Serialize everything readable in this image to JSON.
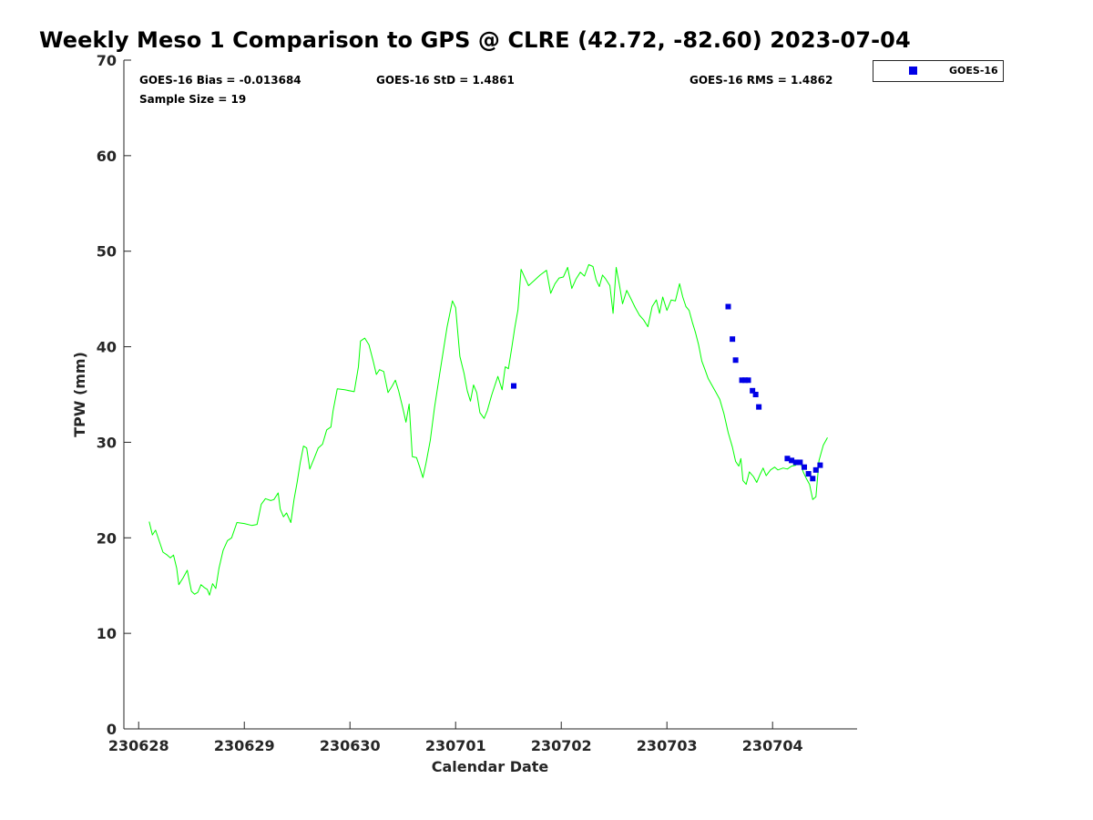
{
  "chart_data": {
    "type": "scatter",
    "title": "Weekly Meso 1 Comparison to GPS @ CLRE (42.72, -82.60) 2023-07-04",
    "xlabel": "Calendar Date",
    "ylabel": "TPW (mm)",
    "ylim": [
      0,
      70
    ],
    "yticks": [
      0,
      10,
      20,
      30,
      40,
      50,
      60,
      70
    ],
    "xticks": [
      "230628",
      "230629",
      "230630",
      "230701",
      "230702",
      "230703",
      "230704"
    ],
    "xlim_days": [
      -0.14,
      6.8
    ],
    "grid": false,
    "legend_position": "top-right-outside",
    "stats": {
      "bias": "GOES-16 Bias = -0.013684",
      "std": "GOES-16 StD = 1.4861",
      "rms": "GOES-16 RMS = 1.4862",
      "sample": "Sample Size = 19"
    },
    "gps_series": {
      "name": "GPS",
      "color": "#00ff00",
      "points": [
        [
          0.1,
          21.7
        ],
        [
          0.13,
          20.3
        ],
        [
          0.16,
          20.8
        ],
        [
          0.2,
          19.5
        ],
        [
          0.23,
          18.5
        ],
        [
          0.27,
          18.2
        ],
        [
          0.3,
          17.9
        ],
        [
          0.33,
          18.2
        ],
        [
          0.36,
          16.8
        ],
        [
          0.38,
          15.1
        ],
        [
          0.42,
          15.8
        ],
        [
          0.46,
          16.6
        ],
        [
          0.5,
          14.4
        ],
        [
          0.53,
          14.1
        ],
        [
          0.56,
          14.3
        ],
        [
          0.59,
          15.1
        ],
        [
          0.62,
          14.8
        ],
        [
          0.65,
          14.6
        ],
        [
          0.67,
          14.0
        ],
        [
          0.7,
          15.2
        ],
        [
          0.73,
          14.7
        ],
        [
          0.76,
          16.8
        ],
        [
          0.8,
          18.7
        ],
        [
          0.84,
          19.7
        ],
        [
          0.88,
          20.0
        ],
        [
          0.93,
          21.6
        ],
        [
          1.0,
          21.5
        ],
        [
          1.07,
          21.3
        ],
        [
          1.12,
          21.4
        ],
        [
          1.16,
          23.5
        ],
        [
          1.2,
          24.1
        ],
        [
          1.25,
          23.9
        ],
        [
          1.28,
          24.0
        ],
        [
          1.32,
          24.7
        ],
        [
          1.34,
          23.0
        ],
        [
          1.37,
          22.2
        ],
        [
          1.4,
          22.6
        ],
        [
          1.44,
          21.6
        ],
        [
          1.47,
          24.0
        ],
        [
          1.5,
          25.8
        ],
        [
          1.53,
          27.9
        ],
        [
          1.56,
          29.6
        ],
        [
          1.59,
          29.4
        ],
        [
          1.62,
          27.2
        ],
        [
          1.66,
          28.3
        ],
        [
          1.7,
          29.4
        ],
        [
          1.74,
          29.8
        ],
        [
          1.78,
          31.3
        ],
        [
          1.82,
          31.6
        ],
        [
          1.84,
          33.3
        ],
        [
          1.88,
          35.6
        ],
        [
          1.95,
          35.5
        ],
        [
          2.04,
          35.3
        ],
        [
          2.08,
          37.9
        ],
        [
          2.1,
          40.6
        ],
        [
          2.14,
          40.9
        ],
        [
          2.18,
          40.2
        ],
        [
          2.22,
          38.5
        ],
        [
          2.25,
          37.1
        ],
        [
          2.28,
          37.6
        ],
        [
          2.32,
          37.4
        ],
        [
          2.36,
          35.2
        ],
        [
          2.4,
          35.9
        ],
        [
          2.43,
          36.5
        ],
        [
          2.46,
          35.4
        ],
        [
          2.5,
          33.6
        ],
        [
          2.53,
          32.1
        ],
        [
          2.56,
          34.0
        ],
        [
          2.59,
          28.5
        ],
        [
          2.63,
          28.4
        ],
        [
          2.66,
          27.4
        ],
        [
          2.69,
          26.3
        ],
        [
          2.72,
          27.8
        ],
        [
          2.76,
          30.2
        ],
        [
          2.8,
          33.6
        ],
        [
          2.85,
          37.2
        ],
        [
          2.92,
          42.1
        ],
        [
          2.97,
          44.8
        ],
        [
          3.0,
          44.1
        ],
        [
          3.04,
          39.0
        ],
        [
          3.08,
          37.2
        ],
        [
          3.11,
          35.4
        ],
        [
          3.14,
          34.3
        ],
        [
          3.17,
          36.0
        ],
        [
          3.2,
          35.2
        ],
        [
          3.23,
          33.1
        ],
        [
          3.27,
          32.5
        ],
        [
          3.3,
          33.3
        ],
        [
          3.34,
          34.9
        ],
        [
          3.37,
          35.9
        ],
        [
          3.4,
          36.9
        ],
        [
          3.44,
          35.5
        ],
        [
          3.47,
          37.9
        ],
        [
          3.5,
          37.7
        ],
        [
          3.53,
          39.8
        ],
        [
          3.56,
          42.0
        ],
        [
          3.59,
          43.9
        ],
        [
          3.62,
          48.1
        ],
        [
          3.66,
          47.1
        ],
        [
          3.69,
          46.4
        ],
        [
          3.74,
          46.9
        ],
        [
          3.8,
          47.5
        ],
        [
          3.86,
          48.0
        ],
        [
          3.9,
          45.6
        ],
        [
          3.94,
          46.6
        ],
        [
          3.98,
          47.2
        ],
        [
          4.02,
          47.3
        ],
        [
          4.06,
          48.3
        ],
        [
          4.1,
          46.1
        ],
        [
          4.14,
          47.1
        ],
        [
          4.18,
          47.8
        ],
        [
          4.22,
          47.4
        ],
        [
          4.26,
          48.6
        ],
        [
          4.3,
          48.4
        ],
        [
          4.33,
          47.0
        ],
        [
          4.36,
          46.3
        ],
        [
          4.39,
          47.5
        ],
        [
          4.42,
          47.1
        ],
        [
          4.46,
          46.4
        ],
        [
          4.49,
          43.5
        ],
        [
          4.52,
          48.3
        ],
        [
          4.55,
          46.5
        ],
        [
          4.58,
          44.5
        ],
        [
          4.62,
          45.9
        ],
        [
          4.66,
          45.0
        ],
        [
          4.7,
          44.1
        ],
        [
          4.74,
          43.3
        ],
        [
          4.78,
          42.8
        ],
        [
          4.82,
          42.1
        ],
        [
          4.86,
          44.2
        ],
        [
          4.9,
          44.9
        ],
        [
          4.93,
          43.5
        ],
        [
          4.96,
          45.2
        ],
        [
          5.0,
          43.8
        ],
        [
          5.04,
          44.9
        ],
        [
          5.08,
          44.8
        ],
        [
          5.12,
          46.6
        ],
        [
          5.15,
          45.2
        ],
        [
          5.18,
          44.2
        ],
        [
          5.21,
          43.8
        ],
        [
          5.24,
          42.6
        ],
        [
          5.27,
          41.5
        ],
        [
          5.3,
          40.2
        ],
        [
          5.33,
          38.5
        ],
        [
          5.36,
          37.6
        ],
        [
          5.39,
          36.7
        ],
        [
          5.42,
          36.1
        ],
        [
          5.46,
          35.3
        ],
        [
          5.5,
          34.5
        ],
        [
          5.54,
          33.0
        ],
        [
          5.58,
          31.0
        ],
        [
          5.62,
          29.5
        ],
        [
          5.65,
          28.0
        ],
        [
          5.68,
          27.5
        ],
        [
          5.7,
          28.3
        ],
        [
          5.72,
          26.0
        ],
        [
          5.75,
          25.6
        ],
        [
          5.78,
          26.9
        ],
        [
          5.82,
          26.4
        ],
        [
          5.85,
          25.8
        ],
        [
          5.88,
          26.6
        ],
        [
          5.91,
          27.3
        ],
        [
          5.94,
          26.5
        ],
        [
          5.98,
          27.1
        ],
        [
          6.02,
          27.4
        ],
        [
          6.05,
          27.1
        ],
        [
          6.1,
          27.3
        ],
        [
          6.14,
          27.2
        ],
        [
          6.18,
          27.5
        ],
        [
          6.22,
          27.6
        ],
        [
          6.26,
          28.1
        ],
        [
          6.29,
          26.9
        ],
        [
          6.32,
          26.2
        ],
        [
          6.35,
          25.6
        ],
        [
          6.38,
          24.0
        ],
        [
          6.41,
          24.3
        ],
        [
          6.44,
          28.1
        ],
        [
          6.48,
          29.7
        ],
        [
          6.52,
          30.5
        ]
      ]
    },
    "series": [
      {
        "name": "GOES-16",
        "color": "#0000e6",
        "points": [
          [
            3.55,
            35.9
          ],
          [
            5.58,
            44.2
          ],
          [
            5.62,
            40.8
          ],
          [
            5.65,
            38.6
          ],
          [
            5.71,
            36.5
          ],
          [
            5.74,
            36.5
          ],
          [
            5.77,
            36.5
          ],
          [
            5.81,
            35.4
          ],
          [
            5.84,
            35.0
          ],
          [
            5.87,
            33.7
          ],
          [
            6.14,
            28.3
          ],
          [
            6.18,
            28.1
          ],
          [
            6.22,
            27.9
          ],
          [
            6.26,
            27.9
          ],
          [
            6.3,
            27.4
          ],
          [
            6.34,
            26.7
          ],
          [
            6.38,
            26.2
          ],
          [
            6.41,
            27.1
          ],
          [
            6.45,
            27.6
          ]
        ]
      }
    ]
  }
}
